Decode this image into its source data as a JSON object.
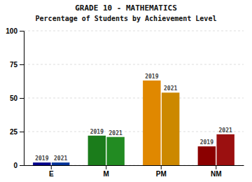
{
  "chart_data": {
    "type": "bar",
    "title": "GRADE 10 - MATHEMATICS",
    "subtitle": "Percentage of Students by Achievement Level",
    "categories": [
      "E",
      "M",
      "PM",
      "NM"
    ],
    "series": [
      {
        "name": "2019",
        "colors": [
          "#00008B",
          "#1B7C1B",
          "#E08800",
          "#8B0000"
        ],
        "values": [
          2,
          22,
          63,
          14
        ]
      },
      {
        "name": "2021",
        "colors": [
          "#003399",
          "#228B22",
          "#CC8800",
          "#9B1010"
        ],
        "values": [
          2,
          21,
          54,
          23
        ]
      }
    ],
    "ylim": [
      0,
      100
    ],
    "yticks": [
      0,
      25,
      50,
      75,
      100
    ],
    "grid": true
  }
}
